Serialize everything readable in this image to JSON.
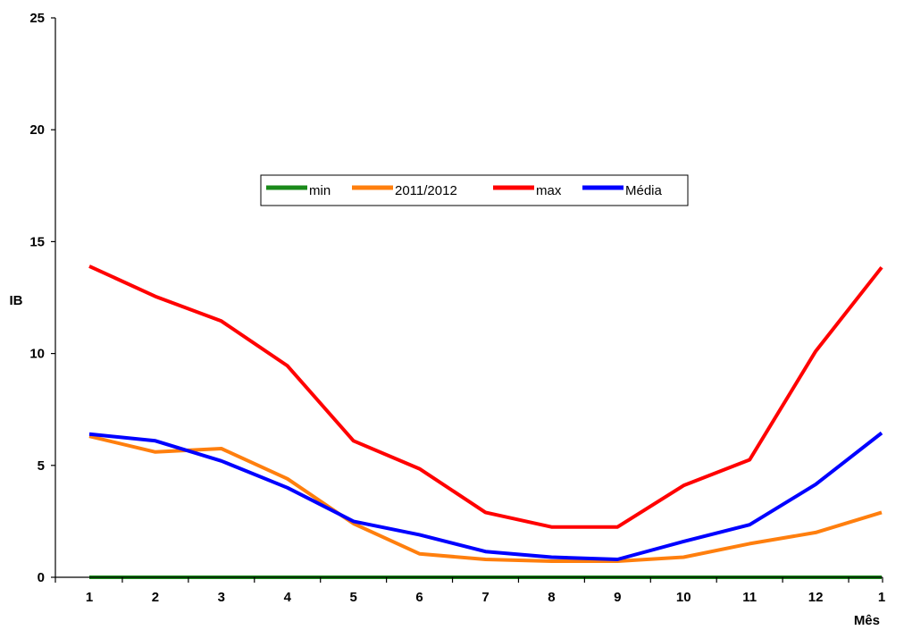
{
  "chart_data": {
    "type": "line",
    "title": "",
    "xlabel": "Mês",
    "ylabel": "IB",
    "categories": [
      "1",
      "2",
      "3",
      "4",
      "5",
      "6",
      "7",
      "8",
      "9",
      "10",
      "11",
      "12",
      "1"
    ],
    "y_ticks": [
      "0",
      "5",
      "10",
      "15",
      "20",
      "25"
    ],
    "ylim": [
      0,
      25
    ],
    "grid": false,
    "legend_position": "center",
    "series": [
      {
        "name": "min",
        "color": "#1a8a1a",
        "values": [
          0,
          0,
          0,
          0,
          0,
          0,
          0,
          0,
          0,
          0,
          0,
          0,
          0
        ]
      },
      {
        "name": "2011/2012",
        "color": "#ff7f0e",
        "values": [
          6.3,
          5.6,
          5.75,
          4.4,
          2.4,
          1.05,
          0.8,
          0.72,
          0.72,
          0.9,
          1.5,
          2.0,
          2.9
        ]
      },
      {
        "name": "max",
        "color": "#ff0000",
        "values": [
          13.9,
          12.55,
          11.45,
          9.45,
          6.1,
          4.85,
          2.9,
          2.25,
          2.25,
          4.1,
          5.25,
          10.1,
          13.85
        ]
      },
      {
        "name": "Média",
        "color": "#0000ff",
        "values": [
          6.4,
          6.1,
          5.2,
          4.0,
          2.5,
          1.9,
          1.15,
          0.9,
          0.8,
          1.6,
          2.35,
          4.15,
          6.45
        ]
      }
    ]
  }
}
